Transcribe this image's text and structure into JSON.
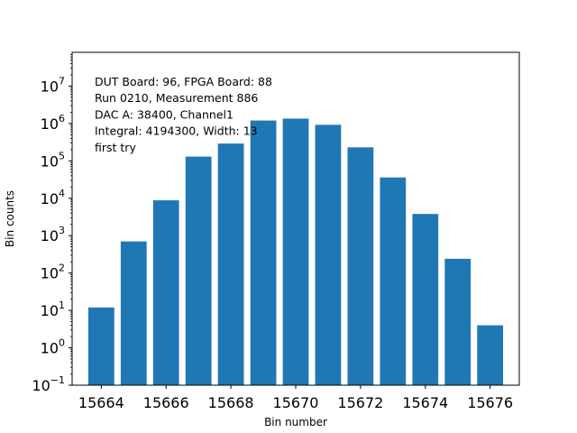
{
  "chart_data": {
    "type": "bar",
    "xlabel": "Bin number",
    "ylabel": "Bin counts",
    "yscale": "log",
    "ylim": [
      0.1,
      80000000
    ],
    "xlim": [
      15663.1,
      15676.9
    ],
    "bar_width": 0.8,
    "color": "#1f77b4",
    "grid": false,
    "x": [
      15664,
      15665,
      15666,
      15667,
      15668,
      15669,
      15670,
      15671,
      15672,
      15673,
      15674,
      15675,
      15676
    ],
    "values": [
      12,
      700,
      8800,
      130000,
      290000,
      1200000,
      1350000,
      920000,
      230000,
      36000,
      3800,
      240,
      4
    ],
    "x_ticks": [
      15664,
      15666,
      15668,
      15670,
      15672,
      15674,
      15676
    ],
    "y_ticks": [
      {
        "value": 0.1,
        "base": "10",
        "exp": "−1"
      },
      {
        "value": 1,
        "base": "10",
        "exp": "0"
      },
      {
        "value": 10,
        "base": "10",
        "exp": "1"
      },
      {
        "value": 100,
        "base": "10",
        "exp": "2"
      },
      {
        "value": 1000,
        "base": "10",
        "exp": "3"
      },
      {
        "value": 10000,
        "base": "10",
        "exp": "4"
      },
      {
        "value": 100000,
        "base": "10",
        "exp": "5"
      },
      {
        "value": 1000000,
        "base": "10",
        "exp": "6"
      },
      {
        "value": 10000000,
        "base": "10",
        "exp": "7"
      }
    ],
    "annotation_lines": [
      "DUT Board: 96, FPGA Board: 88",
      "Run 0210, Measurement 886",
      "DAC A: 38400, Channel1",
      "Integral: 4194300, Width: 13",
      "first try"
    ]
  }
}
